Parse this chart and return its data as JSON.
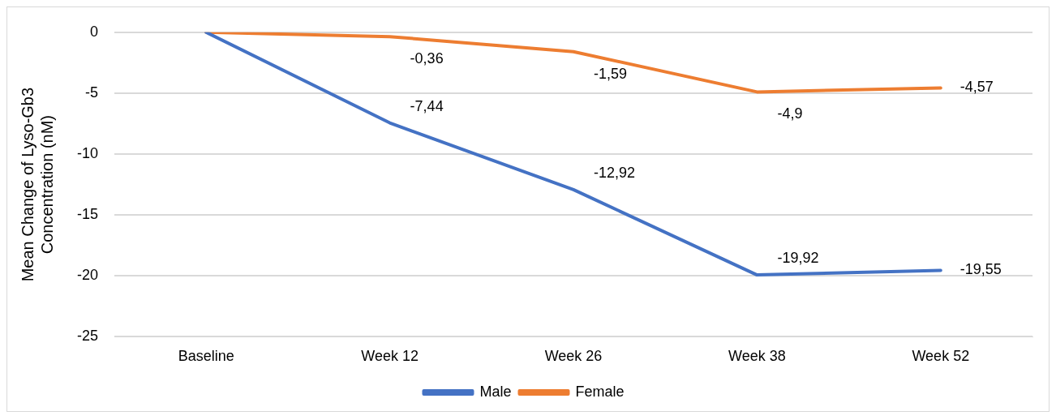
{
  "chart_data": {
    "type": "line",
    "ylabel": "Mean Change of Lyso-Gb3 Concentration (nM)",
    "categories": [
      "Baseline",
      "Week 12",
      "Week 26",
      "Week 38",
      "Week 52"
    ],
    "series": [
      {
        "name": "Male",
        "color": "#4472c4",
        "values": [
          0,
          -7.44,
          -12.92,
          -19.92,
          -19.55
        ],
        "value_labels": [
          null,
          "-7,44",
          "-12,92",
          "-19,92",
          "-19,55"
        ]
      },
      {
        "name": "Female",
        "color": "#ed7d31",
        "values": [
          0,
          -0.36,
          -1.59,
          -4.9,
          -4.57
        ],
        "value_labels": [
          null,
          "-0,36",
          "-1,59",
          "-4,9",
          "-4,57"
        ]
      }
    ],
    "ylim": [
      -25,
      0
    ],
    "yticks": [
      -25,
      -20,
      -15,
      -10,
      -5,
      0
    ],
    "grid": "y",
    "legend": "bottom",
    "marker": "none",
    "line_style": "solid"
  }
}
